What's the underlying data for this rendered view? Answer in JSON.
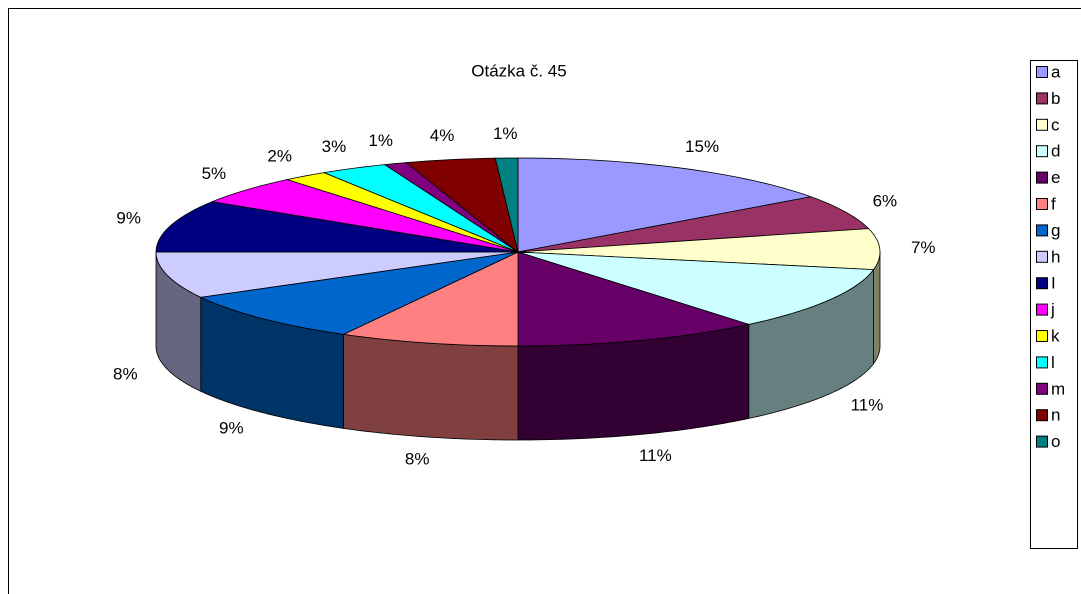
{
  "chart_data": {
    "type": "pie",
    "title": "Otázka č. 45",
    "categories": [
      "a",
      "b",
      "c",
      "d",
      "e",
      "f",
      "g",
      "h",
      "I",
      "j",
      "k",
      "l",
      "m",
      "n",
      "o"
    ],
    "values": [
      15,
      6,
      7,
      11,
      11,
      8,
      9,
      8,
      9,
      5,
      2,
      3,
      1,
      4,
      1
    ],
    "value_labels": [
      "15%",
      "6%",
      "7%",
      "11%",
      "11%",
      "8%",
      "9%",
      "8%",
      "9%",
      "5%",
      "2%",
      "3%",
      "1%",
      "4%",
      "1%"
    ],
    "colors": [
      "#9999ff",
      "#993366",
      "#ffffcc",
      "#ccffff",
      "#660066",
      "#ff8080",
      "#0066cc",
      "#ccccff",
      "#000080",
      "#ff00ff",
      "#ffff00",
      "#00ffff",
      "#800080",
      "#800000",
      "#008080"
    ],
    "legend": "right"
  }
}
